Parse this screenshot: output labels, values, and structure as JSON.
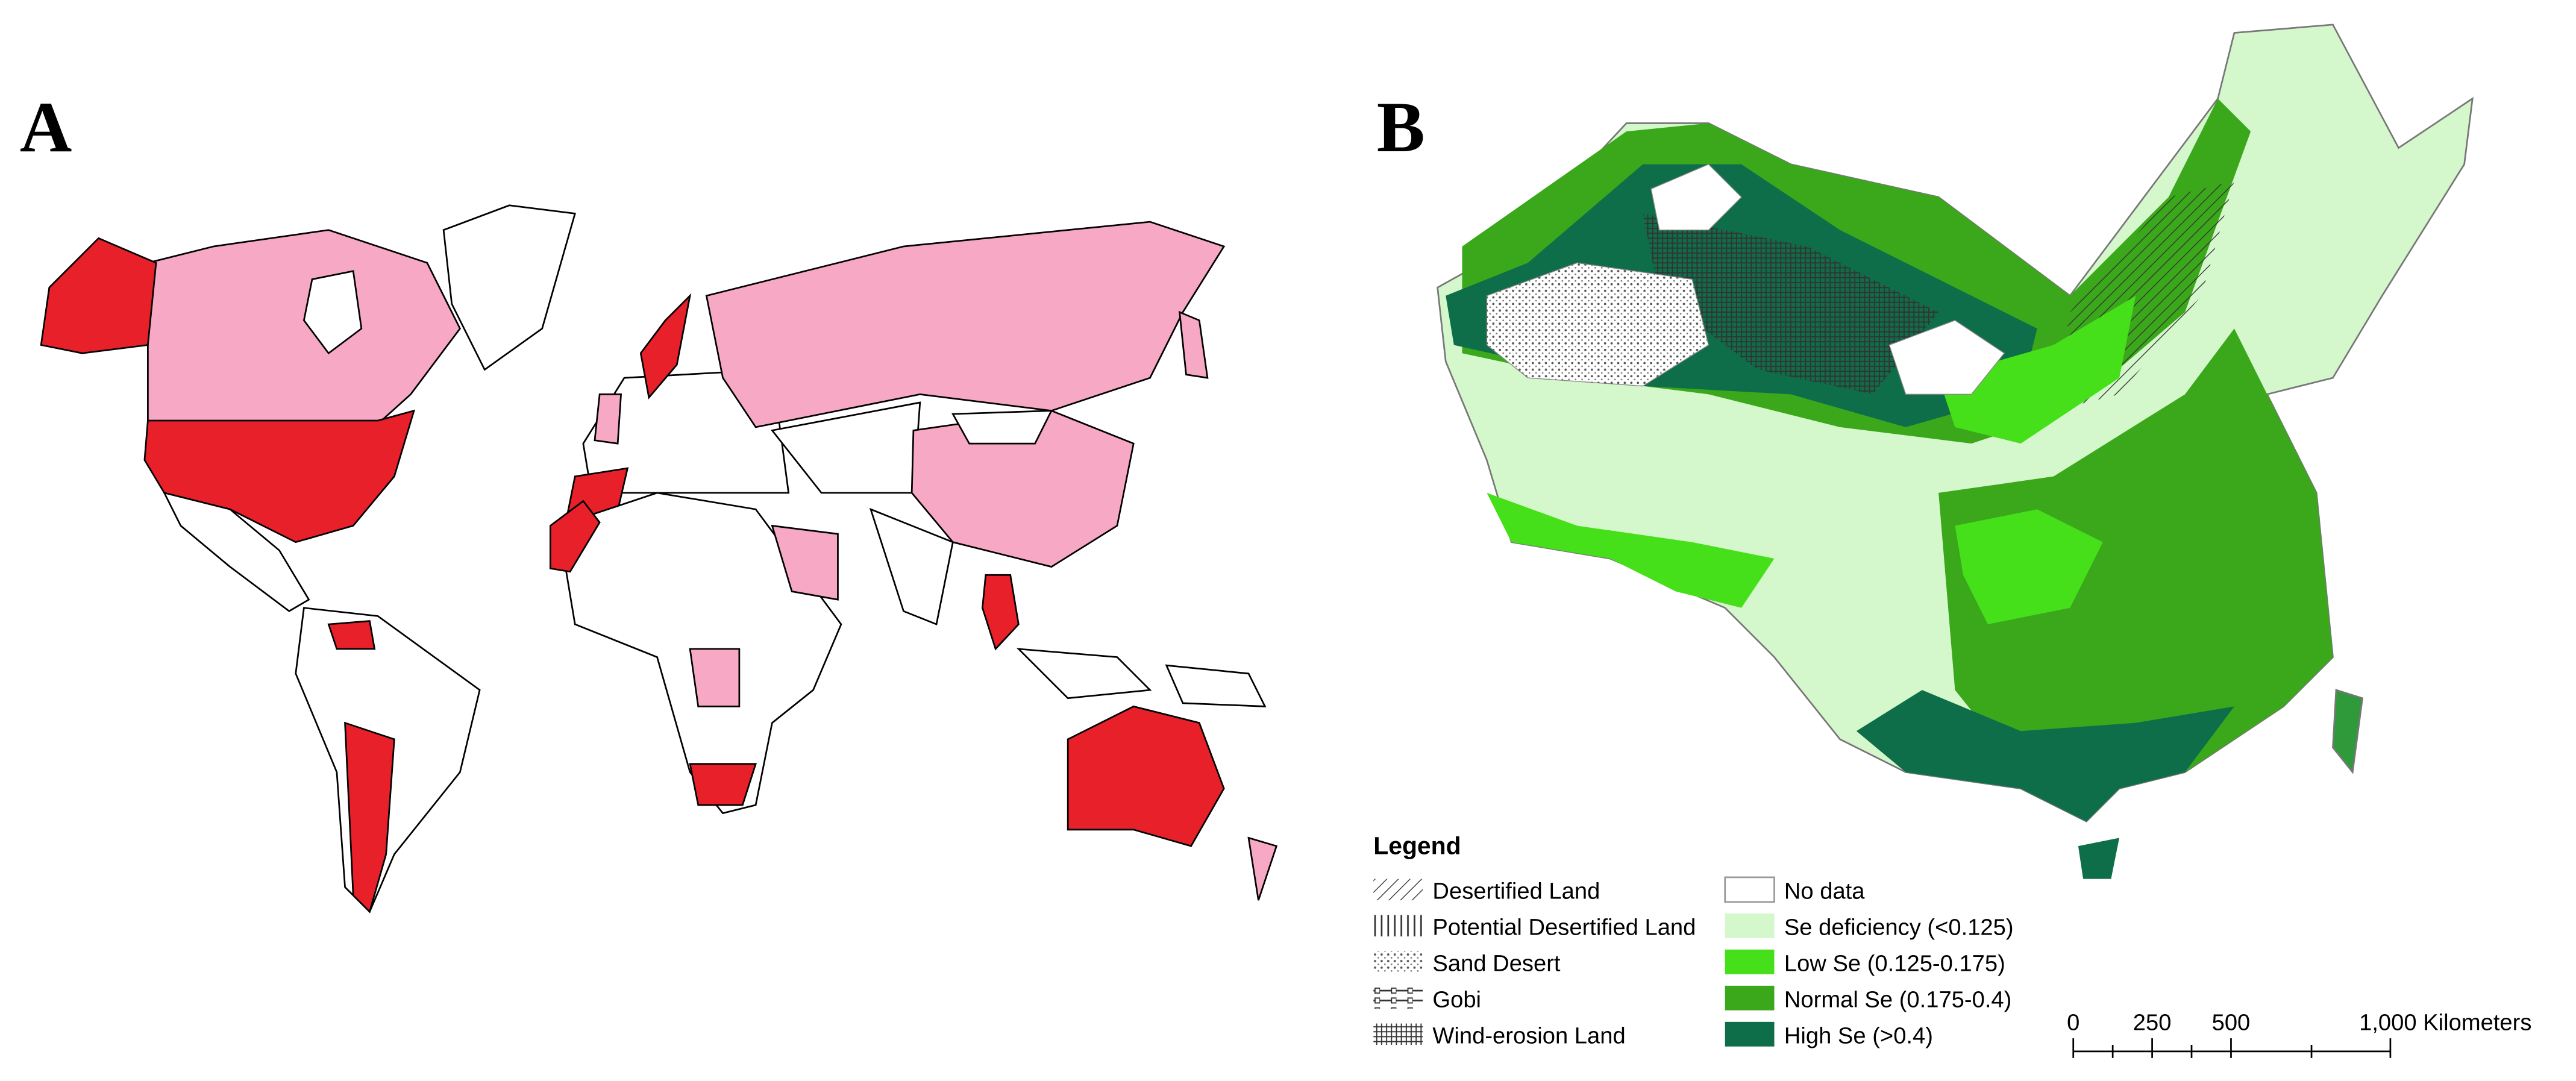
{
  "panels": [
    {
      "label": "A"
    },
    {
      "label": "B"
    }
  ],
  "legend": {
    "title": "Legend",
    "left_items": [
      "Desertified Land",
      "Potential Desertified Land",
      "Sand Desert",
      "Gobi",
      "Wind-erosion Land"
    ],
    "right_items": [
      "No data",
      "Se deficiency (<0.125)",
      "Low Se (0.125-0.175)",
      "Normal Se (0.175-0.4)",
      "High Se (>0.4)"
    ]
  },
  "scale_bar": {
    "labels": [
      "0",
      "250",
      "500",
      "1,000 Kilometers"
    ]
  }
}
